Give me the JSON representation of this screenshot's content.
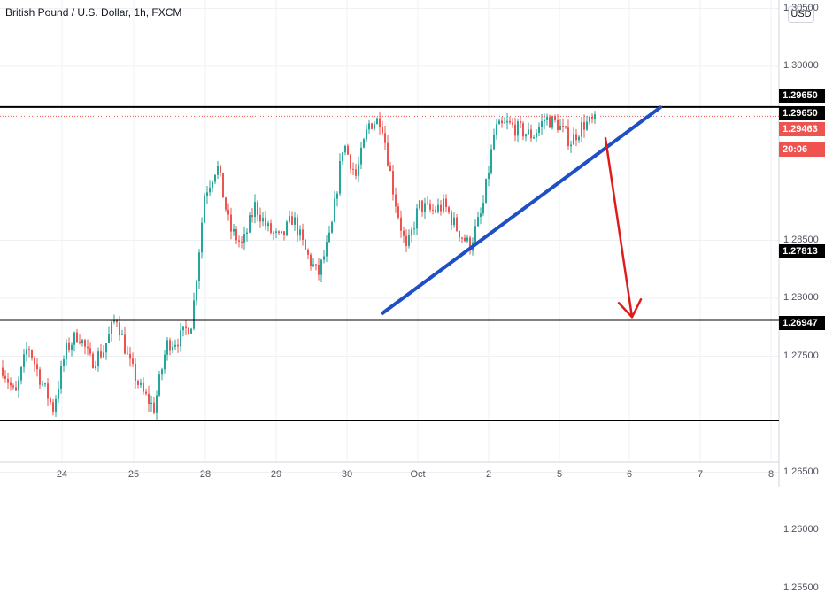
{
  "header": {
    "symbol_title": "British Pound / U.S. Dollar, 1h, FXCM",
    "currency_button": "USD"
  },
  "colors": {
    "up_candle": "#26a69a",
    "down_candle": "#ef5350",
    "trendline": "#1e4fc4",
    "arrow": "#e01b1b",
    "level_line": "#000000",
    "current_price": "#ef5350"
  },
  "chart_data": {
    "type": "candlestick",
    "symbol": "British Pound / U.S. Dollar",
    "interval": "1h",
    "source": "FXCM",
    "x_tick_labels": [
      "24",
      "25",
      "28",
      "29",
      "30",
      "Oct",
      "2",
      "5",
      "6",
      "7",
      "8"
    ],
    "y_tick_labels": [
      "1.30500",
      "1.30000",
      "1.28500",
      "1.28000",
      "1.27500",
      "1.26500",
      "1.26000",
      "1.25500"
    ],
    "y_range": [
      1.252,
      1.308
    ],
    "horizontal_levels": [
      {
        "label": "1.29650",
        "price": 1.2965
      },
      {
        "label": "1.27813",
        "price": 1.27813
      },
      {
        "label": "1.26947",
        "price": 1.26947
      }
    ],
    "price_labels": [
      {
        "text": "1.29650",
        "kind": "level"
      },
      {
        "text": "1.29650",
        "kind": "level"
      },
      {
        "text": "1.29463",
        "kind": "current"
      },
      {
        "text": "20:06",
        "kind": "countdown"
      },
      {
        "text": "1.27813",
        "kind": "level"
      },
      {
        "text": "1.26947",
        "kind": "level"
      }
    ],
    "current_price": 1.29463,
    "current_price_dotted": 1.2957,
    "trendline": {
      "from": [
        "30",
        1.2787
      ],
      "to": [
        "6",
        1.2957
      ]
    },
    "arrow": {
      "from": [
        "5",
        1.2964
      ],
      "to": [
        "6",
        1.2783
      ]
    },
    "candle_path": [
      [
        "23",
        1.274
      ],
      [
        "23",
        1.2715
      ],
      [
        "24",
        1.276
      ],
      [
        "24",
        1.273
      ],
      [
        "24",
        1.2705
      ],
      [
        "24",
        1.2755
      ],
      [
        "24",
        1.277
      ],
      [
        "25",
        1.2745
      ],
      [
        "25",
        1.2755
      ],
      [
        "25",
        1.2785
      ],
      [
        "25",
        1.2745
      ],
      [
        "25",
        1.272
      ],
      [
        "28",
        1.2705
      ],
      [
        "28",
        1.276
      ],
      [
        "28",
        1.2765
      ],
      [
        "28",
        1.278
      ],
      [
        "28",
        1.289
      ],
      [
        "28",
        1.2915
      ],
      [
        "29",
        1.286
      ],
      [
        "29",
        1.2845
      ],
      [
        "29",
        1.288
      ],
      [
        "29",
        1.286
      ],
      [
        "30",
        1.285
      ],
      [
        "30",
        1.287
      ],
      [
        "30",
        1.284
      ],
      [
        "30",
        1.282
      ],
      [
        "30",
        1.2855
      ],
      [
        "Oct",
        1.2935
      ],
      [
        "Oct",
        1.2905
      ],
      [
        "Oct",
        1.295
      ],
      [
        "Oct",
        1.2955
      ],
      [
        "Oct",
        1.289
      ],
      [
        "Oct",
        1.284
      ],
      [
        "Oct",
        1.288
      ],
      [
        "Oct",
        1.2875
      ],
      [
        "2",
        1.288
      ],
      [
        "2",
        1.286
      ],
      [
        "2",
        1.2845
      ],
      [
        "2",
        1.2875
      ],
      [
        "2",
        1.2945
      ],
      [
        "2",
        1.295
      ],
      [
        "2",
        1.2945
      ],
      [
        "5",
        1.294
      ],
      [
        "5",
        1.2955
      ],
      [
        "5",
        1.295
      ],
      [
        "5",
        1.2935
      ],
      [
        "5",
        1.295
      ],
      [
        "5",
        1.2952
      ]
    ]
  }
}
